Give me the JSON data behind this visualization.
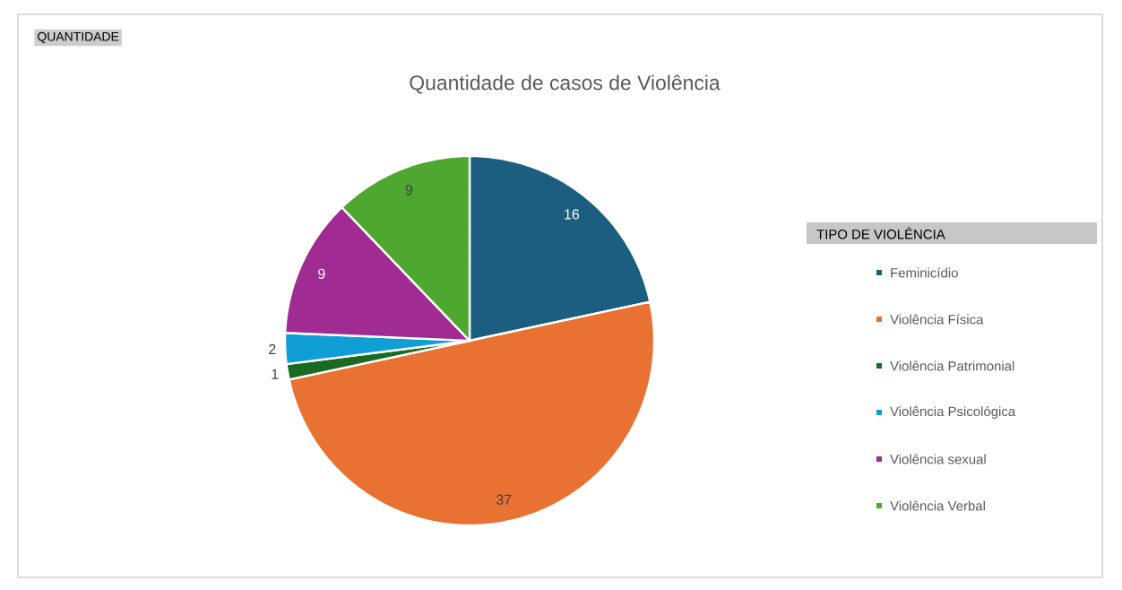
{
  "chart_data": {
    "type": "pie",
    "title": "Quantidade de casos de Violência",
    "categories": [
      "Feminicídio",
      "Violência Física",
      "Violência Patrimonial",
      "Violência Psicológica",
      "Violência sexual",
      "Violência Verbal"
    ],
    "values": [
      16,
      37,
      1,
      2,
      9,
      9
    ],
    "colors": [
      "#1b5e80",
      "#e97132",
      "#196b24",
      "#0f9ed5",
      "#a02b93",
      "#4ea72e"
    ],
    "legend_title": "TIPO DE VIOLÊNCIA",
    "legend": "right",
    "data_labels": true,
    "annotations": [
      "QUANTIDADE"
    ]
  }
}
